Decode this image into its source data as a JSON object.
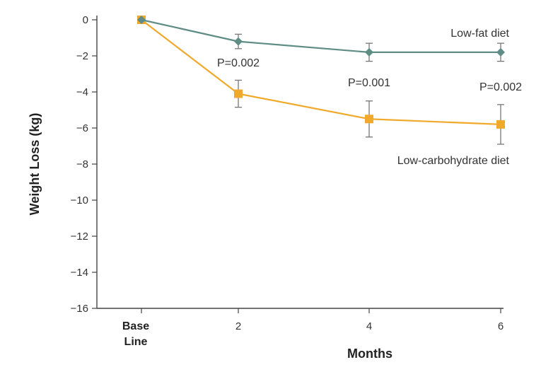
{
  "chart_data": {
    "type": "line",
    "ylabel": "Weight Loss (kg)",
    "xlabel": "Months",
    "x_ticks": [
      {
        "x": 0,
        "label": [
          "Base",
          "Line"
        ]
      },
      {
        "x": 2,
        "label": [
          "2"
        ]
      },
      {
        "x": 4,
        "label": [
          "4"
        ]
      },
      {
        "x": 6,
        "label": [
          "6"
        ]
      }
    ],
    "ylim": [
      -16,
      0
    ],
    "y_ticks": [
      0,
      -2,
      -4,
      -6,
      -8,
      -10,
      -12,
      -14,
      -16
    ],
    "y_tick_labels": [
      "0",
      "-2",
      "-4",
      "-6",
      "-8",
      "-10",
      "-12",
      "-14",
      "-16"
    ],
    "grid": false,
    "series": [
      {
        "name": "Low-fat diet",
        "color": "#5f8d86",
        "marker": "diamond",
        "x": [
          0,
          2,
          4,
          6
        ],
        "y": [
          0,
          -1.2,
          -1.8,
          -1.8
        ],
        "error": [
          0,
          0.4,
          0.5,
          0.5
        ]
      },
      {
        "name": "Low-carbohydrate diet",
        "color": "#f0a92a",
        "marker": "square",
        "x": [
          0,
          2,
          4,
          6
        ],
        "y": [
          0,
          -4.1,
          -5.5,
          -5.8
        ],
        "error": [
          0,
          0.75,
          1.0,
          1.1
        ]
      }
    ],
    "annotations": [
      {
        "text": "P=0.002",
        "x": 2
      },
      {
        "text": "P=0.001",
        "x": 4
      },
      {
        "text": "P=0.002",
        "x": 6
      }
    ]
  }
}
